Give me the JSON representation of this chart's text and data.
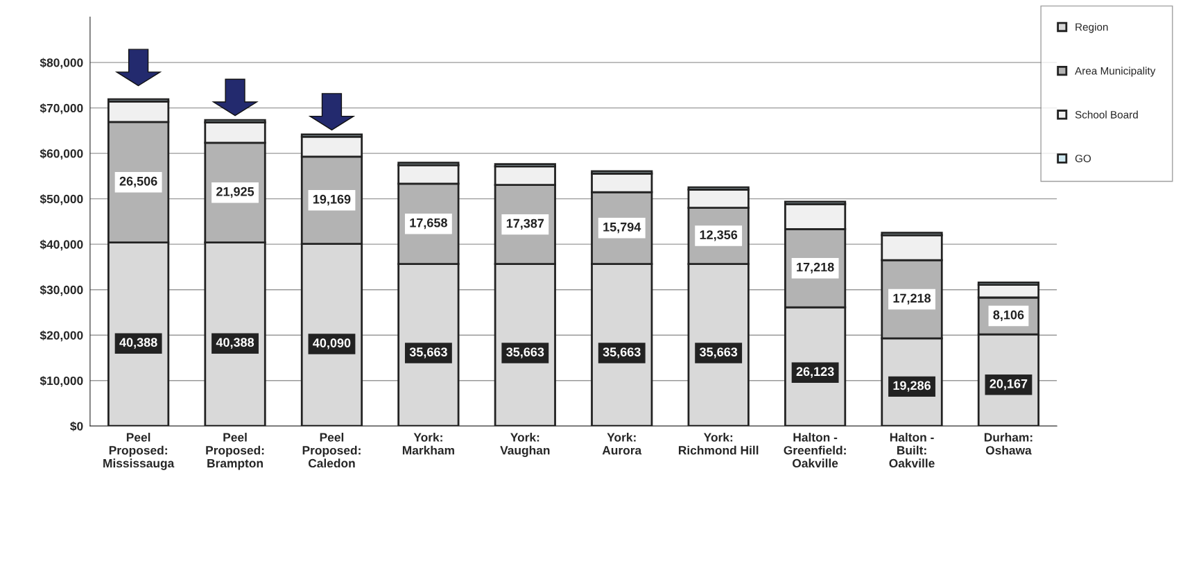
{
  "chart_data": {
    "type": "bar",
    "stacked": true,
    "categories": [
      "Peel\nProposed:\nMississauga",
      "Peel\nProposed:\nBrampton",
      "Peel\nProposed:\nCaledon",
      "York:\nMarkham",
      "York:\nVaughan",
      "York:\nAurora",
      "York:\nRichmond Hill",
      "Halton -\nGreenfield:\nOakville",
      "Halton -\nBuilt:\nOakville",
      "Durham:\nOshawa"
    ],
    "series": [
      {
        "name": "Region",
        "color": "#d9d9d9",
        "values": [
          40388,
          40388,
          40090,
          35663,
          35663,
          35663,
          35663,
          26123,
          19286,
          20167
        ],
        "value_labels": [
          "40,388",
          "40,388",
          "40,090",
          "35,663",
          "35,663",
          "35,663",
          "35,663",
          "26,123",
          "19,286",
          "20,167"
        ]
      },
      {
        "name": "Area Municipality",
        "color": "#b3b3b3",
        "values": [
          26506,
          21925,
          19169,
          17658,
          17387,
          15794,
          12356,
          17218,
          17218,
          8106
        ],
        "value_labels": [
          "26,506",
          "21,925",
          "19,169",
          "17,658",
          "17,387",
          "15,794",
          "12,356",
          "17,218",
          "17,218",
          "8,106"
        ]
      },
      {
        "name": "School Board",
        "color": "#f0f0f0",
        "values": [
          4500,
          4500,
          4400,
          4100,
          4100,
          4100,
          4000,
          5500,
          5500,
          2800
        ]
      },
      {
        "name": "GO",
        "color": "#cfe8f0",
        "values": [
          500,
          500,
          500,
          500,
          500,
          500,
          500,
          500,
          500,
          500
        ]
      }
    ],
    "ylim": [
      0,
      90000
    ],
    "yticks": [
      {
        "value": 0,
        "label": "$0"
      },
      {
        "value": 10000,
        "label": "$10,000"
      },
      {
        "value": 20000,
        "label": "$20,000"
      },
      {
        "value": 30000,
        "label": "$30,000"
      },
      {
        "value": 40000,
        "label": "$40,000"
      },
      {
        "value": 50000,
        "label": "$50,000"
      },
      {
        "value": 60000,
        "label": "$60,000"
      },
      {
        "value": 70000,
        "label": "$70,000"
      },
      {
        "value": 80000,
        "label": "$80,000"
      }
    ],
    "grid": "y",
    "legend": "top right"
  }
}
